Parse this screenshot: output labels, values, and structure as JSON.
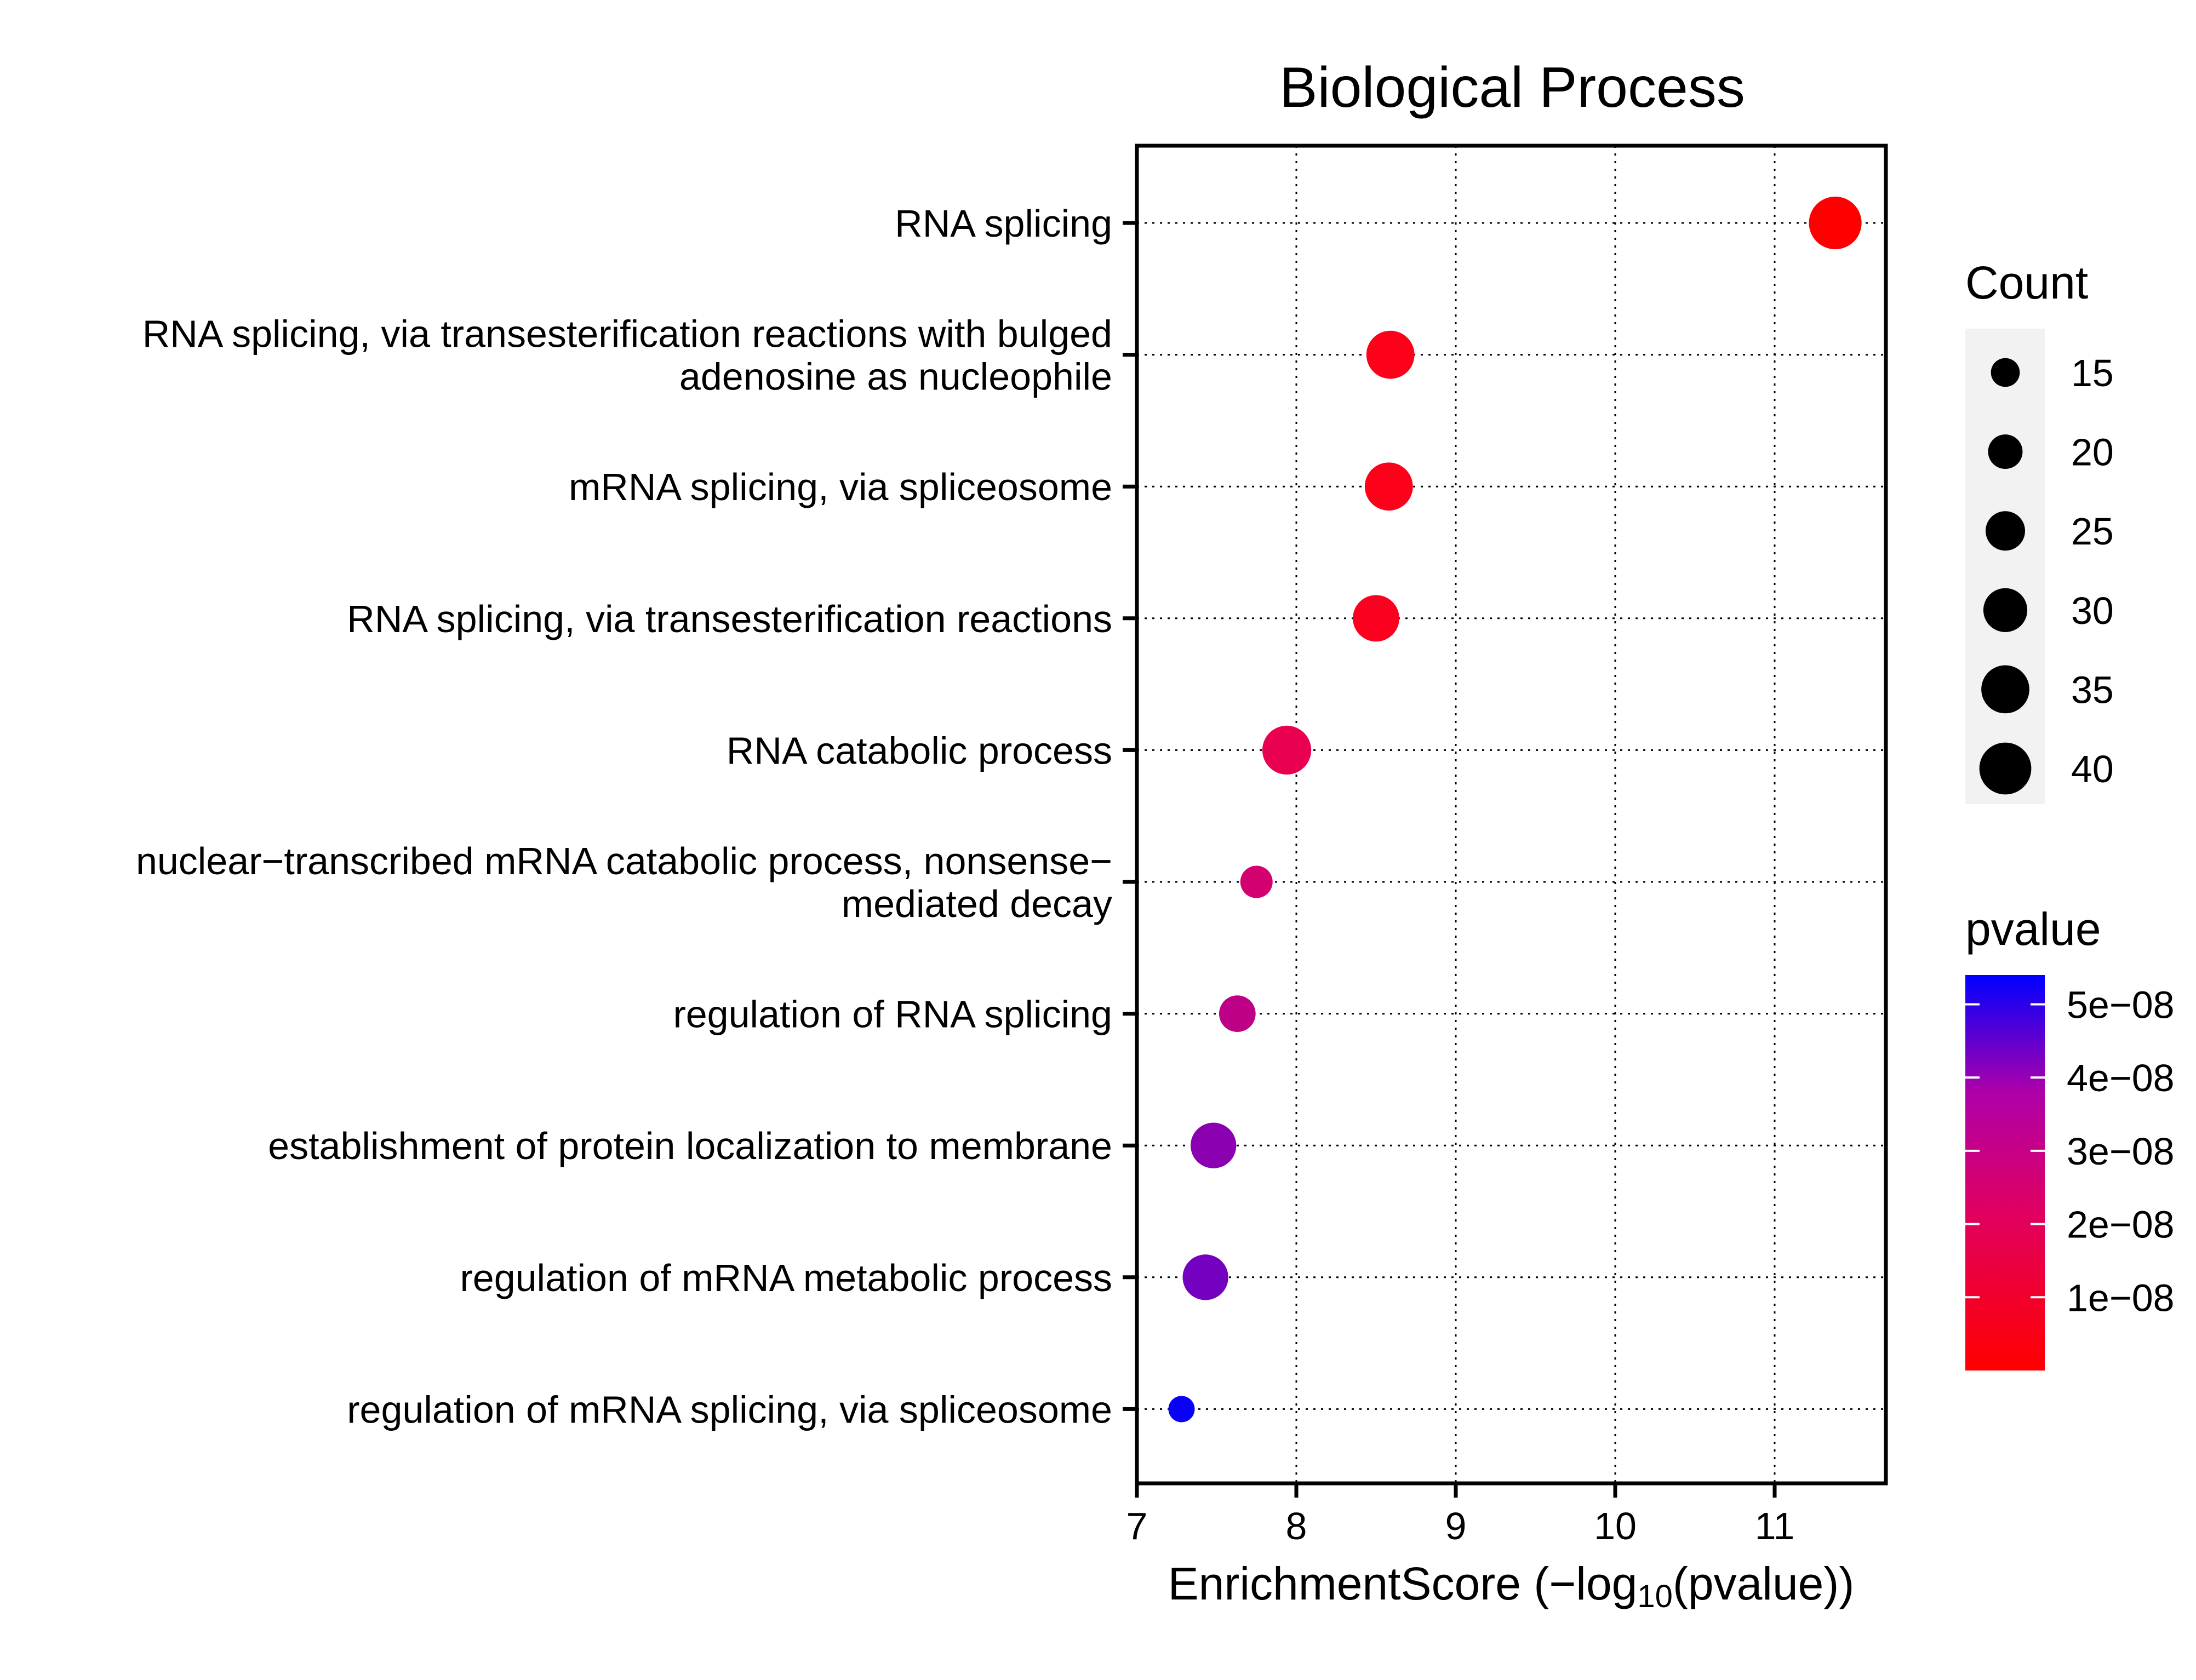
{
  "chart_data": {
    "type": "scatter",
    "title": "Biological Process",
    "xlabel": {
      "prefix": "EnrichmentScore (−log",
      "subscript": "10",
      "suffix": "(pvalue))"
    },
    "ylabel": "",
    "xlim": [
      7,
      11.7
    ],
    "xticks": [
      7,
      8,
      9,
      10,
      11
    ],
    "grid": true,
    "categories": [
      {
        "lines": [
          "RNA splicing"
        ]
      },
      {
        "lines": [
          "RNA splicing, via transesterification reactions with bulged",
          "adenosine as nucleophile"
        ]
      },
      {
        "lines": [
          "mRNA splicing, via spliceosome"
        ]
      },
      {
        "lines": [
          "RNA splicing, via transesterification reactions"
        ]
      },
      {
        "lines": [
          "RNA catabolic process"
        ]
      },
      {
        "lines": [
          "nuclear−transcribed mRNA catabolic process, nonsense−",
          "mediated decay"
        ]
      },
      {
        "lines": [
          "regulation of RNA splicing"
        ]
      },
      {
        "lines": [
          "establishment of protein localization to membrane"
        ]
      },
      {
        "lines": [
          "regulation of mRNA metabolic process"
        ]
      },
      {
        "lines": [
          "regulation of mRNA splicing, via spliceosome"
        ]
      }
    ],
    "points": [
      {
        "x": 11.38,
        "count": 41,
        "pvalue": 4.2e-12
      },
      {
        "x": 8.59,
        "count": 35,
        "pvalue": 2.6e-09
      },
      {
        "x": 8.58,
        "count": 35,
        "pvalue": 2.6e-09
      },
      {
        "x": 8.5,
        "count": 33,
        "pvalue": 3.2e-09
      },
      {
        "x": 7.94,
        "count": 36,
        "pvalue": 1.15e-08
      },
      {
        "x": 7.75,
        "count": 18,
        "pvalue": 1.8e-08
      },
      {
        "x": 7.63,
        "count": 22,
        "pvalue": 2.3e-08
      },
      {
        "x": 7.48,
        "count": 32,
        "pvalue": 3.3e-08
      },
      {
        "x": 7.43,
        "count": 32,
        "pvalue": 3.7e-08
      },
      {
        "x": 7.28,
        "count": 13,
        "pvalue": 5.3e-08
      }
    ],
    "legend": {
      "placement": "right",
      "size": {
        "title": "Count",
        "values": [
          15,
          20,
          25,
          30,
          35,
          40
        ]
      },
      "color": {
        "title": "pvalue",
        "range": [
          0,
          5.4e-08
        ],
        "ticks": [
          {
            "value": 5e-08,
            "label": "5e−08"
          },
          {
            "value": 4e-08,
            "label": "4e−08"
          },
          {
            "value": 3e-08,
            "label": "3e−08"
          },
          {
            "value": 2e-08,
            "label": "2e−08"
          },
          {
            "value": 1e-08,
            "label": "1e−08"
          }
        ],
        "low_color": "#ff0000",
        "high_color": "#0000ff"
      }
    }
  }
}
